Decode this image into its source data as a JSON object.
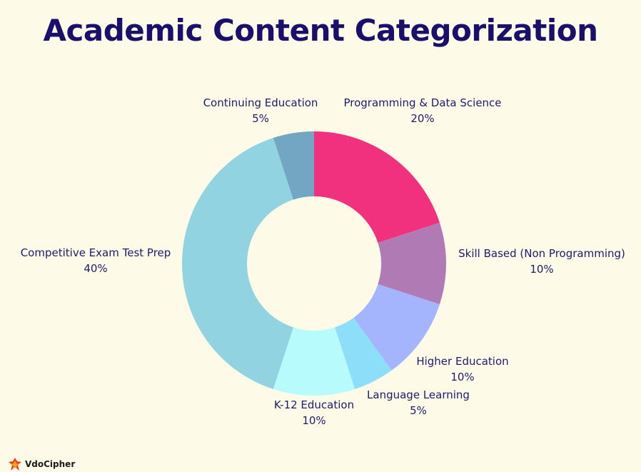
{
  "title": "Academic Content Categorization",
  "brand": {
    "name": "VdoCipher"
  },
  "chart_data": {
    "type": "pie",
    "donut": true,
    "title": "Academic Content Categorization",
    "slices": [
      {
        "label": "Programming & Data Science",
        "value": 20,
        "value_label": "20%",
        "color": "#f2317e"
      },
      {
        "label": "Skill Based (Non Programming)",
        "value": 10,
        "value_label": "10%",
        "color": "#b07ab4"
      },
      {
        "label": "Higher Education",
        "value": 10,
        "value_label": "10%",
        "color": "#a4b4fd"
      },
      {
        "label": "Language Learning",
        "value": 5,
        "value_label": "5%",
        "color": "#8ddff9"
      },
      {
        "label": "K-12 Education",
        "value": 10,
        "value_label": "10%",
        "color": "#b7fbfd"
      },
      {
        "label": "Competitive Exam Test Prep",
        "value": 40,
        "value_label": "40%",
        "color": "#91d3e0"
      },
      {
        "label": "Continuing Education",
        "value": 5,
        "value_label": "5%",
        "color": "#73a6c2"
      }
    ]
  }
}
